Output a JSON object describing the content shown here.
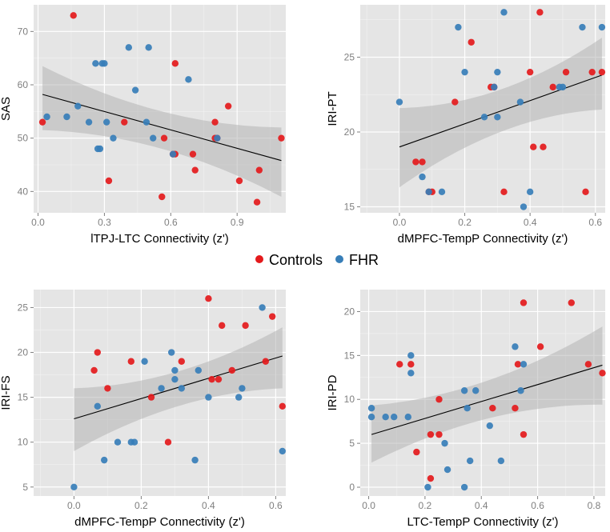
{
  "colors": {
    "controls": "#e41a1c",
    "fhr": "#377eb8",
    "panel_bg": "#e5e5e5",
    "grid": "#ffffff",
    "ribbon": "#b5b5b5",
    "line": "#000000"
  },
  "legend": {
    "entries": [
      "Controls",
      "FHR"
    ],
    "placement": "center"
  },
  "chart_data": [
    {
      "type": "scatter",
      "xlabel": "lTPJ-LTC Connectivity (z')",
      "ylabel": "SAS",
      "xlim": [
        -0.02,
        1.12
      ],
      "ylim": [
        36,
        75
      ],
      "xticks": [
        0.0,
        0.3,
        0.6,
        0.9
      ],
      "xtick_labels": [
        "0.0",
        "0.3",
        "0.6",
        "0.9"
      ],
      "yticks": [
        40,
        50,
        60,
        70
      ],
      "ytick_labels": [
        "40",
        "50",
        "60",
        "70"
      ],
      "fit": {
        "x0": 0.02,
        "x1": 1.1,
        "y0": 58.2,
        "y1": 45.8,
        "ci_low": [
          51.5,
          39.0
        ],
        "ci_high": [
          63.5,
          52.0
        ]
      },
      "series": [
        {
          "name": "Controls",
          "x": [
            0.02,
            0.16,
            0.32,
            0.39,
            0.56,
            0.57,
            0.61,
            0.62,
            0.62,
            0.7,
            0.71,
            0.8,
            0.8,
            0.81,
            0.86,
            0.91,
            0.99,
            1.0,
            1.1
          ],
          "y": [
            53,
            73,
            42,
            53,
            39,
            50,
            47,
            47,
            64,
            47,
            44,
            53,
            50,
            50,
            56,
            42,
            38,
            44,
            50
          ]
        },
        {
          "name": "FHR",
          "x": [
            0.04,
            0.13,
            0.18,
            0.23,
            0.26,
            0.27,
            0.28,
            0.29,
            0.3,
            0.31,
            0.34,
            0.41,
            0.44,
            0.49,
            0.5,
            0.52,
            0.61,
            0.68,
            0.81
          ],
          "y": [
            54,
            54,
            56,
            53,
            64,
            48,
            48,
            64,
            64,
            53,
            50,
            67,
            59,
            53,
            67,
            50,
            47,
            61,
            50
          ]
        }
      ]
    },
    {
      "type": "scatter",
      "xlabel": "dMPFC-TempP Connectivity (z')",
      "ylabel": "IRI-PT",
      "xlim": [
        -0.12,
        0.63
      ],
      "ylim": [
        14.6,
        28.5
      ],
      "xticks": [
        0.0,
        0.2,
        0.4,
        0.6
      ],
      "xtick_labels": [
        "0.0",
        "0.2",
        "0.4",
        "0.6"
      ],
      "yticks": [
        15,
        20,
        25
      ],
      "ytick_labels": [
        "15",
        "20",
        "25"
      ],
      "fit": {
        "x0": 0.0,
        "x1": 0.62,
        "y0": 19.0,
        "y1": 23.8,
        "ci_low": [
          16.3,
          21.5
        ],
        "ci_high": [
          21.6,
          26.3
        ]
      },
      "series": [
        {
          "name": "Controls",
          "x": [
            0.05,
            0.07,
            0.09,
            0.1,
            0.17,
            0.22,
            0.28,
            0.29,
            0.32,
            0.4,
            0.41,
            0.43,
            0.44,
            0.47,
            0.51,
            0.57,
            0.59,
            0.62
          ],
          "y": [
            18,
            18,
            16,
            16,
            22,
            26,
            23,
            23,
            16,
            24,
            19,
            28,
            19,
            23,
            24,
            16,
            24,
            24
          ]
        },
        {
          "name": "FHR",
          "x": [
            0.0,
            0.07,
            0.09,
            0.13,
            0.18,
            0.2,
            0.26,
            0.29,
            0.3,
            0.3,
            0.32,
            0.37,
            0.38,
            0.4,
            0.49,
            0.5,
            0.56,
            0.62
          ],
          "y": [
            22,
            17,
            16,
            16,
            27,
            24,
            21,
            23,
            21,
            24,
            28,
            22,
            15,
            16,
            23,
            23,
            27,
            27
          ]
        }
      ]
    },
    {
      "type": "scatter",
      "xlabel": "dMPFC-TempP Connectivity (z')",
      "ylabel": "IRI-FS",
      "xlim": [
        -0.12,
        0.63
      ],
      "ylim": [
        4.0,
        27.0
      ],
      "xticks": [
        0.0,
        0.2,
        0.4,
        0.6
      ],
      "xtick_labels": [
        "0.0",
        "0.2",
        "0.4",
        "0.6"
      ],
      "yticks": [
        5,
        10,
        15,
        20,
        25
      ],
      "ytick_labels": [
        "5",
        "10",
        "15",
        "20",
        "25"
      ],
      "fit": {
        "x0": 0.0,
        "x1": 0.62,
        "y0": 12.6,
        "y1": 19.6,
        "ci_low": [
          9.0,
          16.0
        ],
        "ci_high": [
          16.0,
          22.8
        ]
      },
      "series": [
        {
          "name": "Controls",
          "x": [
            0.06,
            0.07,
            0.1,
            0.17,
            0.23,
            0.28,
            0.32,
            0.4,
            0.41,
            0.43,
            0.44,
            0.47,
            0.51,
            0.57,
            0.59,
            0.62
          ],
          "y": [
            18,
            20,
            16,
            19,
            15,
            10,
            19,
            26,
            17,
            17,
            23,
            18,
            23,
            19,
            24,
            14
          ]
        },
        {
          "name": "FHR",
          "x": [
            0.0,
            0.07,
            0.09,
            0.13,
            0.17,
            0.18,
            0.21,
            0.26,
            0.29,
            0.3,
            0.3,
            0.32,
            0.36,
            0.37,
            0.4,
            0.49,
            0.5,
            0.56,
            0.62
          ],
          "y": [
            5,
            14,
            8,
            10,
            10,
            10,
            19,
            16,
            20,
            17,
            18,
            16,
            8,
            18,
            15,
            15,
            16,
            25,
            9
          ]
        }
      ]
    },
    {
      "type": "scatter",
      "xlabel": "LTC-TempP Connectivity (z')",
      "ylabel": "IRI-PD",
      "xlim": [
        -0.03,
        0.84
      ],
      "ylim": [
        -1.0,
        22.5
      ],
      "xticks": [
        0.0,
        0.2,
        0.4,
        0.6,
        0.8
      ],
      "xtick_labels": [
        "0.0",
        "0.2",
        "0.4",
        "0.6",
        "0.8"
      ],
      "yticks": [
        0,
        5,
        10,
        15,
        20
      ],
      "ytick_labels": [
        "0",
        "5",
        "10",
        "15",
        "20"
      ],
      "fit": {
        "x0": 0.01,
        "x1": 0.83,
        "y0": 6.0,
        "y1": 13.9,
        "ci_low": [
          2.8,
          9.4
        ],
        "ci_high": [
          9.3,
          18.3
        ]
      },
      "series": [
        {
          "name": "Controls",
          "x": [
            0.11,
            0.15,
            0.17,
            0.22,
            0.22,
            0.25,
            0.25,
            0.44,
            0.52,
            0.53,
            0.55,
            0.55,
            0.61,
            0.72,
            0.78,
            0.83
          ],
          "y": [
            14,
            14,
            4,
            1,
            6,
            6,
            10,
            9,
            9,
            14,
            6,
            21,
            16,
            21,
            14,
            13
          ]
        },
        {
          "name": "FHR",
          "x": [
            0.01,
            0.01,
            0.06,
            0.09,
            0.14,
            0.15,
            0.15,
            0.21,
            0.27,
            0.28,
            0.34,
            0.34,
            0.35,
            0.36,
            0.38,
            0.43,
            0.47,
            0.52,
            0.54,
            0.55
          ],
          "y": [
            9,
            8,
            8,
            8,
            8,
            13,
            15,
            0,
            5,
            2,
            11,
            0,
            9,
            3,
            11,
            7,
            3,
            16,
            11,
            14
          ]
        }
      ]
    }
  ]
}
